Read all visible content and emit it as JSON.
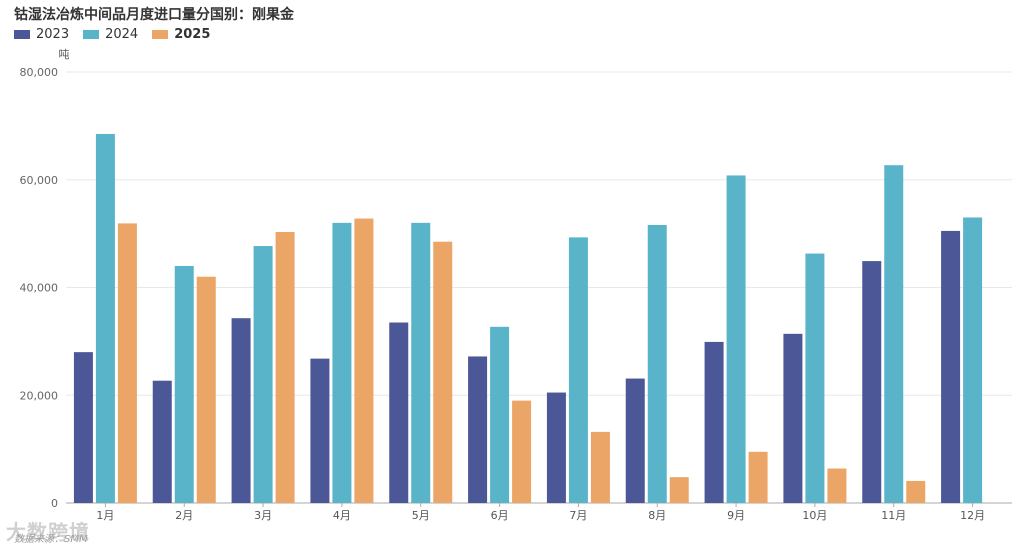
{
  "chart_data": {
    "type": "bar",
    "title": "钴湿法冶炼中间品月度进口量分国别：刚果金",
    "ylabel": "吨",
    "categories": [
      "1月",
      "2月",
      "3月",
      "4月",
      "5月",
      "6月",
      "7月",
      "8月",
      "9月",
      "10月",
      "11月",
      "12月"
    ],
    "ylim": [
      0,
      80000
    ],
    "yticks": [
      0,
      20000,
      40000,
      60000,
      80000
    ],
    "ytick_labels": [
      "0",
      "20,000",
      "40,000",
      "60,000",
      "80,000"
    ],
    "legend_position": "top-left",
    "grid": true,
    "series": [
      {
        "name": "2023",
        "color": "#4b5796",
        "values": [
          28000,
          22700,
          34300,
          26800,
          33500,
          27200,
          20500,
          23100,
          29900,
          31400,
          44900,
          50500
        ]
      },
      {
        "name": "2024",
        "color": "#5ab4c9",
        "values": [
          68500,
          44000,
          47700,
          52000,
          52000,
          32700,
          49300,
          51600,
          60800,
          46300,
          62700,
          53000
        ]
      },
      {
        "name": "2025",
        "color": "#eba566",
        "values": [
          51900,
          42000,
          50300,
          52800,
          48500,
          19000,
          13200,
          4800,
          9500,
          6400,
          4100,
          null
        ]
      }
    ]
  },
  "source_note": "数据来源：SMM",
  "watermark": "大数跨境"
}
